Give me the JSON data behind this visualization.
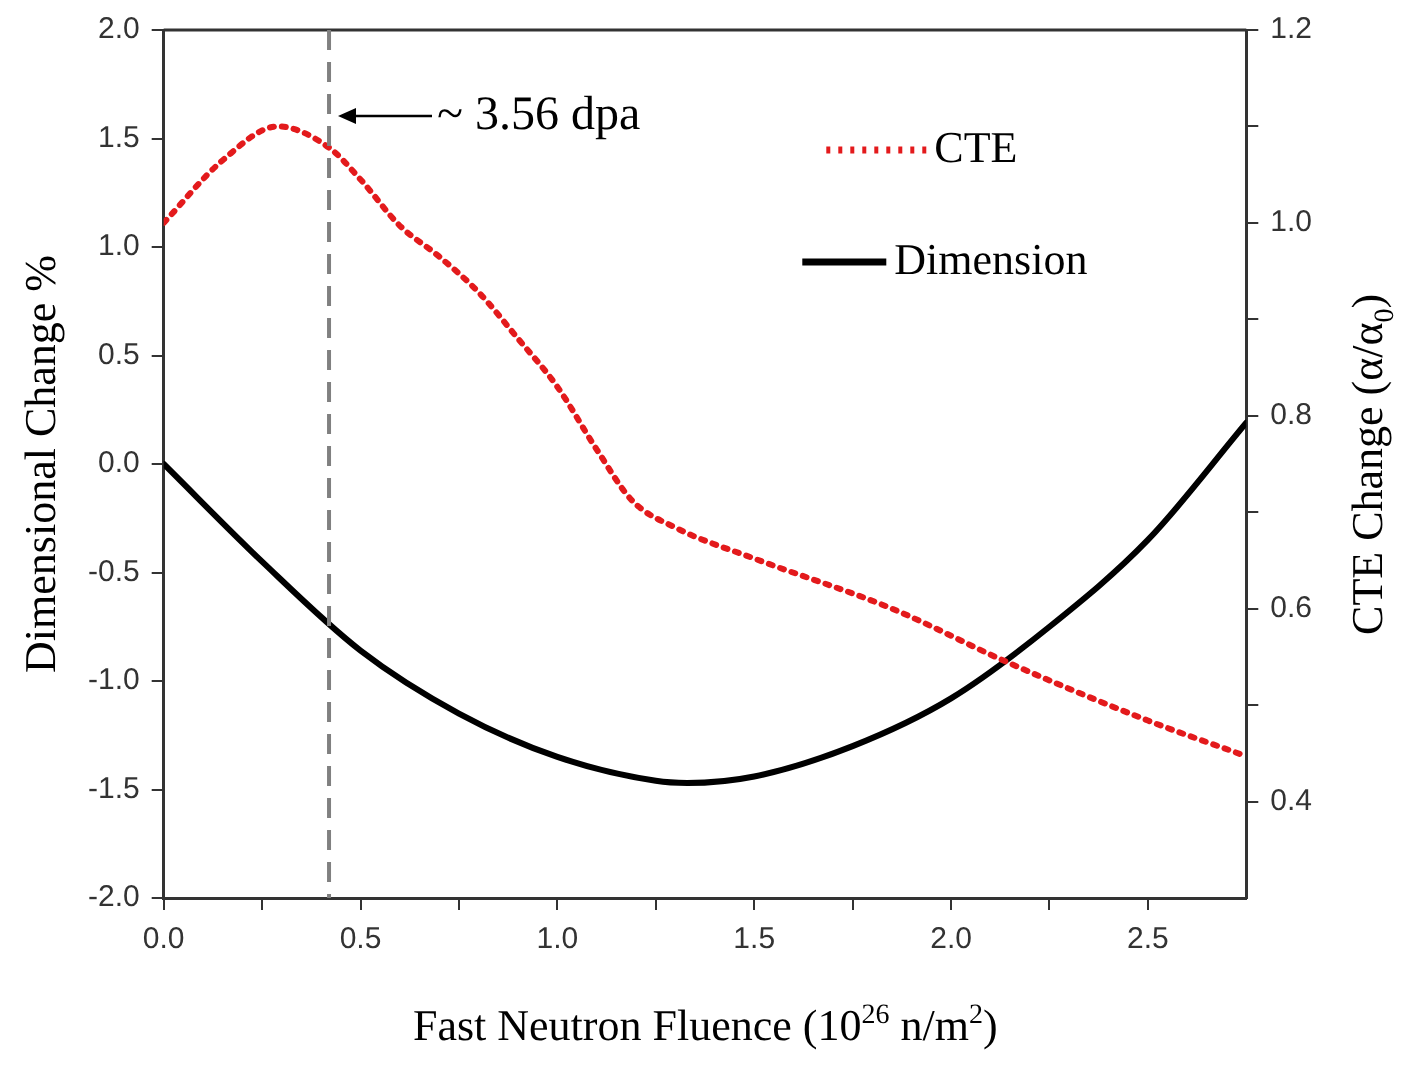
{
  "chart_data": {
    "type": "line",
    "xlabel": "Fast Neutron Fluence (10$^{26}$ n/m$^{2}$)",
    "ylabel": "Dimensional Change %",
    "y2label": "CTE Change (α/α$_{0}$)",
    "xlim": [
      0,
      2.75
    ],
    "xticks": [
      {
        "value": 0,
        "label": "0.0"
      },
      {
        "value": 0.25,
        "label": null
      },
      {
        "value": 0.5,
        "label": "0.5"
      },
      {
        "value": 0.75,
        "label": null
      },
      {
        "value": 1,
        "label": "1.0"
      },
      {
        "value": 1.25,
        "label": null
      },
      {
        "value": 1.5,
        "label": "1.5"
      },
      {
        "value": 1.75,
        "label": null
      },
      {
        "value": 2,
        "label": "2.0"
      },
      {
        "value": 2.25,
        "label": null
      },
      {
        "value": 2.5,
        "label": "2.5"
      }
    ],
    "ylim": [
      -2,
      2
    ],
    "yticks": [
      {
        "value": -2,
        "label": "-2.0"
      },
      {
        "value": -1.5,
        "label": "-1.5"
      },
      {
        "value": -1,
        "label": "-1.0"
      },
      {
        "value": -0.5,
        "label": "-0.5"
      },
      {
        "value": 0,
        "label": "0.0"
      },
      {
        "value": 0.5,
        "label": "0.5"
      },
      {
        "value": 1,
        "label": "1.0"
      },
      {
        "value": 1.5,
        "label": "1.5"
      },
      {
        "value": 2,
        "label": "2.0"
      }
    ],
    "y2lim": [
      0.3,
      1.2
    ],
    "y2ticks": [
      {
        "value": 0.4,
        "label": "0.4"
      },
      {
        "value": 0.5,
        "label": null
      },
      {
        "value": 0.6,
        "label": "0.6"
      },
      {
        "value": 0.7,
        "label": null
      },
      {
        "value": 0.8,
        "label": "0.8"
      },
      {
        "value": 0.9,
        "label": null
      },
      {
        "value": 1,
        "label": "1.0"
      },
      {
        "value": 1.1,
        "label": null
      },
      {
        "value": 1.2,
        "label": "1.2"
      }
    ],
    "grid": false,
    "legend": "top right",
    "marker": "none",
    "series": [
      {
        "name": "CTE",
        "color": "#e31a1c",
        "axis": "y2",
        "line_style": "dotted",
        "x": [
          0,
          0.15,
          0.29,
          0.42,
          0.5,
          0.6,
          0.7,
          0.8,
          0.9,
          1.0,
          1.1,
          1.19,
          1.3,
          1.5,
          1.85,
          2.14,
          2.5,
          2.75
        ],
        "values": [
          1.0,
          1.065,
          1.1,
          1.078,
          1.045,
          0.997,
          0.965,
          0.928,
          0.88,
          0.83,
          0.765,
          0.712,
          0.684,
          0.652,
          0.6,
          0.545,
          0.484,
          0.447
        ]
      },
      {
        "name": "Dimension",
        "color": "#000000",
        "axis": "y",
        "line_style": "solid",
        "x": [
          0,
          0.25,
          0.5,
          0.75,
          1.0,
          1.25,
          1.33,
          1.5,
          1.75,
          2.0,
          2.25,
          2.5,
          2.75
        ],
        "values": [
          0,
          -0.45,
          -0.86,
          -1.15,
          -1.35,
          -1.46,
          -1.47,
          -1.44,
          -1.3,
          -1.08,
          -0.75,
          -0.35,
          0.19
        ]
      }
    ],
    "ref_lines": [
      {
        "axis": "x",
        "value": 0.42,
        "color": "#808080",
        "line_style": "dashed"
      }
    ],
    "annotations": [
      {
        "text": "~ 3.56 dpa",
        "x": 0.42,
        "y": 1.6
      }
    ]
  }
}
